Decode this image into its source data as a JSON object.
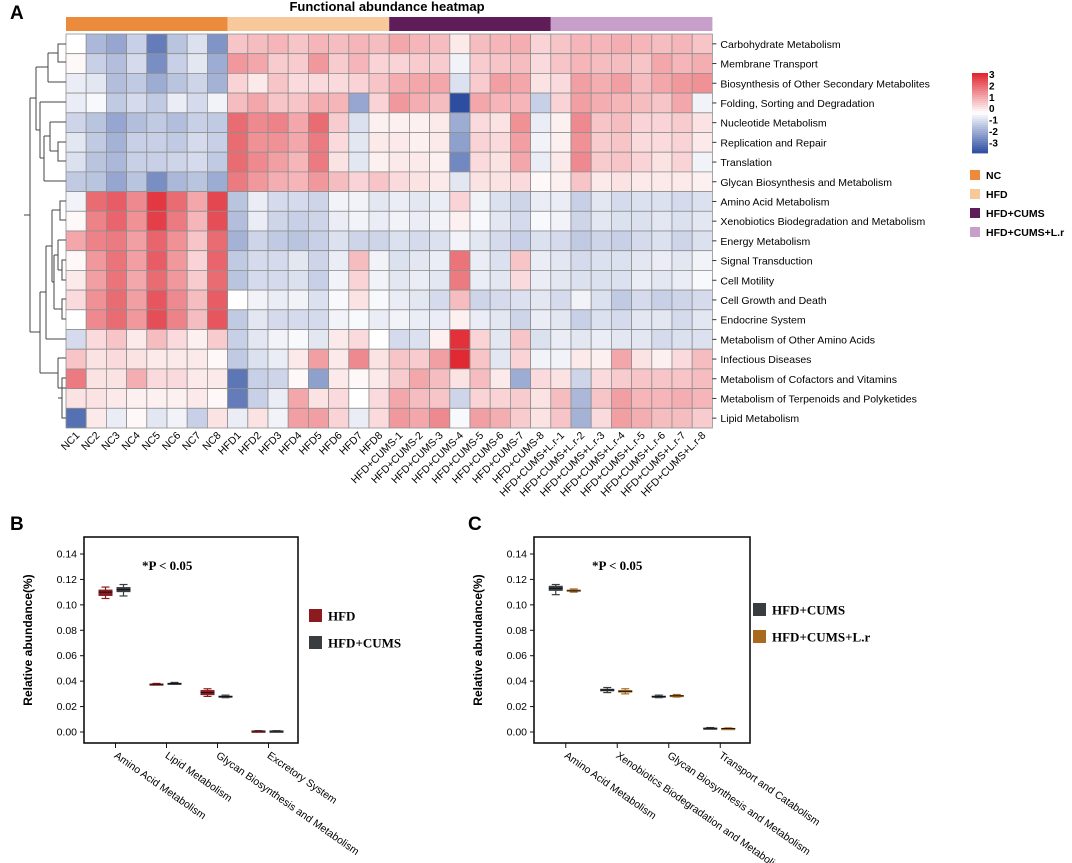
{
  "panel_labels": {
    "a": "A",
    "b": "B",
    "c": "C"
  },
  "colors": {
    "low": "#2c4da0",
    "mid": "#ffffff",
    "high": "#e0222d",
    "grid": "#8f8f8f",
    "NC": "#ec8b3c",
    "HFD": "#f7c99a",
    "HFD+CUMS": "#5e1d59",
    "HFD+CUMS+L.r": "#c79fca",
    "hfd_box": "#8b1b1f",
    "cums_box": "#3a3d40",
    "lr_box": "#a9691f"
  },
  "chart_data": [
    {
      "type": "heatmap",
      "title": "Functional abundance heatmap",
      "columns": [
        "NC1",
        "NC2",
        "NC3",
        "NC4",
        "NC5",
        "NC6",
        "NC7",
        "NC8",
        "HFD1",
        "HFD2",
        "HFD3",
        "HFD4",
        "HFD5",
        "HFD6",
        "HFD7",
        "HFD8",
        "HFD+CUMS-1",
        "HFD+CUMS-2",
        "HFD+CUMS-3",
        "HFD+CUMS-4",
        "HFD+CUMS-5",
        "HFD+CUMS-6",
        "HFD+CUMS-7",
        "HFD+CUMS-8",
        "HFD+CUMS+L.r-1",
        "HFD+CUMS+L.r-2",
        "HFD+CUMS+L.r-3",
        "HFD+CUMS+L.r-4",
        "HFD+CUMS+L.r-5",
        "HFD+CUMS+L.r-6",
        "HFD+CUMS+L.r-7",
        "HFD+CUMS+L.r-8"
      ],
      "rows": [
        "Carbohydrate Metabolism",
        "Membrane Transport",
        "Biosynthesis of Other Secondary Metabolites",
        "Folding, Sorting and Degradation",
        "Nucleotide Metabolism",
        "Replication and Repair",
        "Translation",
        "Glycan Biosynthesis and Metabolism",
        "Amino Acid Metabolism",
        "Xenobiotics Biodegradation and Metabolism",
        "Energy Metabolism",
        "Signal Transduction",
        "Cell Motility",
        "Cell Growth and Death",
        "Endocrine System",
        "Metabolism of Other Amino Acids",
        "Infectious Diseases",
        "Metabolism of Cofactors and Vitamins",
        "Metabolism of Terpenoids and Polyketides",
        "Lipid Metabolism"
      ],
      "groups": [
        {
          "name": "NC",
          "count": 8
        },
        {
          "name": "HFD",
          "count": 8
        },
        {
          "name": "HFD+CUMS",
          "count": 8
        },
        {
          "name": "HFD+CUMS+L.r",
          "count": 8
        }
      ],
      "scale": {
        "min": -3,
        "max": 3,
        "ticks": [
          "3",
          "2",
          "1",
          "0",
          "-1",
          "-2",
          "-3"
        ]
      },
      "values": [
        [
          0,
          -1.2,
          -1.5,
          -0.8,
          -2.2,
          -1.0,
          -0.5,
          -1.8,
          0.8,
          0.9,
          1.0,
          0.8,
          1.0,
          0.9,
          1.0,
          0.9,
          1.2,
          1.0,
          0.9,
          0.3,
          0.9,
          1.0,
          1.1,
          0.6,
          0.8,
          1.0,
          1.0,
          1.1,
          1.0,
          0.9,
          1.0,
          0.8
        ],
        [
          0.1,
          -0.8,
          -1.1,
          -0.6,
          -1.9,
          -0.8,
          -0.4,
          -1.4,
          1.4,
          1.2,
          0.7,
          0.7,
          1.4,
          0.7,
          1.0,
          0.6,
          0.6,
          0.7,
          0.7,
          -0.2,
          0.7,
          0.8,
          0.9,
          0.5,
          0.8,
          1.0,
          0.9,
          0.9,
          0.8,
          1.2,
          1.0,
          1.1
        ],
        [
          -0.3,
          -0.4,
          -1.1,
          -0.9,
          -1.4,
          -1.0,
          -0.7,
          -1.3,
          0.6,
          0.3,
          0.8,
          0.5,
          0.5,
          0.5,
          0.6,
          0.8,
          1.1,
          1.2,
          1.2,
          -0.5,
          0.7,
          1.3,
          1.2,
          0.4,
          0.5,
          1.3,
          1.1,
          1.3,
          0.9,
          1.2,
          1.4,
          1.5
        ],
        [
          -0.3,
          -0.1,
          -0.9,
          -0.6,
          -0.9,
          -0.3,
          -0.6,
          -0.2,
          0.9,
          1.2,
          0.8,
          0.8,
          1.1,
          1.0,
          -1.5,
          0.6,
          1.4,
          1.1,
          0.9,
          -3.0,
          1.2,
          1.0,
          1.0,
          -0.8,
          0.6,
          1.3,
          1.1,
          1.0,
          0.9,
          0.8,
          1.2,
          -0.2
        ],
        [
          -0.7,
          -1.0,
          -1.5,
          -1.1,
          -0.9,
          -1.1,
          -0.8,
          -0.9,
          2.0,
          1.6,
          1.7,
          1.2,
          2.0,
          0.7,
          -0.5,
          0.2,
          0.2,
          0.2,
          0.3,
          -1.4,
          0.5,
          0.4,
          1.5,
          -0.3,
          0.2,
          1.6,
          0.8,
          0.9,
          0.6,
          0.6,
          0.7,
          0.4
        ],
        [
          -0.4,
          -0.9,
          -1.3,
          -0.8,
          -0.8,
          -0.9,
          -0.6,
          -0.8,
          2.0,
          1.5,
          1.5,
          1.2,
          1.8,
          0.5,
          -0.4,
          0.3,
          0.3,
          0.2,
          0.3,
          -1.6,
          0.6,
          0.5,
          1.3,
          -0.2,
          0.2,
          1.5,
          0.7,
          0.8,
          0.5,
          0.5,
          0.6,
          0.3
        ],
        [
          -0.5,
          -1.0,
          -1.2,
          -0.8,
          -0.8,
          -0.7,
          -0.6,
          -0.9,
          2.0,
          1.6,
          1.3,
          1.0,
          1.8,
          0.4,
          -0.4,
          0.2,
          0.3,
          0.3,
          0.2,
          -2.0,
          0.5,
          0.4,
          1.2,
          -0.3,
          0.3,
          1.6,
          0.7,
          0.8,
          0.6,
          0.4,
          0.6,
          -0.2
        ],
        [
          -0.9,
          -1.0,
          -1.5,
          -1.0,
          -1.9,
          -1.2,
          -1.0,
          -1.4,
          1.8,
          1.4,
          1.1,
          1.0,
          1.4,
          0.9,
          0.6,
          0.8,
          0.5,
          0.4,
          0.3,
          -0.4,
          0.4,
          0.4,
          0.5,
          0.1,
          0.2,
          0.8,
          0.3,
          0.4,
          0.3,
          0.3,
          0.3,
          0.2
        ],
        [
          -0.2,
          2.0,
          2.2,
          1.6,
          2.7,
          2.0,
          1.2,
          2.5,
          -1.0,
          -0.3,
          -0.6,
          -0.6,
          -0.7,
          -0.2,
          -0.2,
          -0.4,
          -0.3,
          -0.4,
          -0.3,
          0.6,
          -0.2,
          -0.5,
          -0.7,
          -0.3,
          -0.3,
          -0.8,
          -0.4,
          -0.6,
          -0.5,
          -0.5,
          -0.6,
          -0.5
        ],
        [
          0.1,
          1.7,
          2.1,
          1.5,
          2.6,
          1.8,
          1.0,
          2.4,
          -1.1,
          -0.3,
          -0.7,
          -0.8,
          -0.7,
          -0.3,
          -0.2,
          -0.3,
          -0.2,
          -0.3,
          -0.2,
          0.2,
          -0.1,
          -0.4,
          -0.6,
          -0.1,
          -0.2,
          -0.7,
          -0.4,
          -0.5,
          -0.5,
          -0.4,
          -0.5,
          -0.4
        ],
        [
          1.2,
          1.7,
          1.8,
          1.3,
          2.1,
          1.5,
          0.8,
          2.0,
          -1.3,
          -0.7,
          -0.9,
          -1.0,
          -0.8,
          -0.5,
          -0.7,
          -0.7,
          -0.5,
          -0.6,
          -0.5,
          -0.2,
          -0.4,
          -0.6,
          -0.8,
          -0.5,
          -0.6,
          -0.9,
          -0.7,
          -0.8,
          -0.6,
          -0.5,
          -0.7,
          -0.5
        ],
        [
          0.1,
          1.4,
          1.9,
          1.3,
          2.2,
          1.4,
          0.6,
          2.1,
          -0.9,
          -0.6,
          -0.6,
          -0.4,
          -0.7,
          -0.3,
          0.9,
          -0.2,
          -0.5,
          -0.4,
          -0.3,
          1.9,
          -0.3,
          -0.5,
          0.8,
          -0.3,
          -0.4,
          -0.6,
          -0.5,
          -0.5,
          -0.4,
          -0.3,
          -0.4,
          -0.2
        ],
        [
          0.3,
          1.3,
          1.9,
          1.2,
          2.0,
          1.4,
          0.7,
          2.0,
          -1.0,
          -0.6,
          -0.6,
          -0.5,
          -0.8,
          -0.2,
          0.6,
          -0.2,
          -0.4,
          -0.3,
          -0.4,
          1.8,
          -0.3,
          -0.4,
          0.5,
          -0.3,
          -0.4,
          -0.5,
          -0.5,
          -0.5,
          -0.3,
          -0.4,
          -0.3,
          -0.1
        ],
        [
          0.5,
          1.5,
          2.0,
          1.3,
          2.3,
          1.6,
          0.9,
          2.2,
          0.0,
          -0.2,
          -0.3,
          -0.2,
          -0.5,
          -0.1,
          0.4,
          -0.1,
          -0.3,
          -0.4,
          -0.6,
          0.9,
          -0.7,
          -0.6,
          -0.5,
          -0.4,
          -0.6,
          -0.2,
          -0.5,
          -0.9,
          -0.6,
          -0.8,
          -0.7,
          -0.6
        ],
        [
          0.0,
          1.6,
          2.0,
          1.4,
          2.4,
          1.7,
          0.9,
          2.3,
          -0.9,
          -0.4,
          -0.6,
          -0.6,
          -0.6,
          -0.2,
          -0.1,
          -0.3,
          -0.2,
          -0.3,
          -0.3,
          0.2,
          -0.3,
          -0.4,
          -0.7,
          -0.3,
          -0.4,
          -0.8,
          -0.5,
          -0.6,
          -0.4,
          -0.4,
          -0.6,
          -0.4
        ],
        [
          -0.6,
          0.5,
          0.8,
          0.3,
          0.9,
          0.5,
          0.2,
          0.7,
          -0.8,
          -0.4,
          -0.2,
          -0.1,
          -0.4,
          0.3,
          0.5,
          0.0,
          -0.6,
          -0.5,
          0.2,
          2.8,
          0.6,
          -0.4,
          0.8,
          -0.5,
          -0.3,
          -0.4,
          -0.3,
          -0.4,
          -0.4,
          -0.6,
          -0.5,
          -0.5
        ],
        [
          0.8,
          0.4,
          0.5,
          0.4,
          0.3,
          0.3,
          0.3,
          0.1,
          -0.9,
          -0.5,
          -0.3,
          0.3,
          1.3,
          0.3,
          1.6,
          0.4,
          0.8,
          0.7,
          1.3,
          2.9,
          0.8,
          -0.4,
          0.6,
          -0.2,
          -0.2,
          0.3,
          0.2,
          1.2,
          0.4,
          0.2,
          0.5,
          0.9
        ],
        [
          1.8,
          0.4,
          0.4,
          1.1,
          0.5,
          0.5,
          0.3,
          0.3,
          -2.3,
          -0.8,
          -0.7,
          0.1,
          -1.6,
          0.3,
          0.1,
          0.3,
          0.7,
          1.2,
          0.9,
          0.4,
          0.9,
          0.3,
          -1.4,
          0.5,
          0.4,
          -0.7,
          0.5,
          0.7,
          0.8,
          0.8,
          0.8,
          0.9
        ],
        [
          0.4,
          0.4,
          0.3,
          0.2,
          0.2,
          0.2,
          0.3,
          0.1,
          -2.2,
          -0.8,
          -0.3,
          1.2,
          0.4,
          0.5,
          0.0,
          0.5,
          1.2,
          0.9,
          0.8,
          -0.7,
          0.6,
          0.6,
          0.7,
          0.4,
          0.9,
          -1.2,
          0.8,
          1.3,
          1.0,
          1.0,
          1.1,
          1.0
        ],
        [
          -2.4,
          0.3,
          -0.3,
          0.1,
          -0.4,
          -0.2,
          -0.8,
          0.4,
          -0.3,
          0.4,
          -0.2,
          1.3,
          1.3,
          0.6,
          -0.3,
          0.5,
          1.4,
          1.2,
          1.6,
          -0.1,
          1.3,
          1.1,
          0.7,
          0.4,
          0.8,
          -1.3,
          0.5,
          1.3,
          1.1,
          0.9,
          0.9,
          0.7
        ]
      ]
    },
    {
      "type": "box",
      "ylabel": "Relative abundance(%)",
      "annotation": "*P < 0.05",
      "yticks": [
        "0.14",
        "0.12",
        "0.10",
        "0.08",
        "0.06",
        "0.04",
        "0.02",
        "0.00"
      ],
      "ylim": [
        0,
        0.14
      ],
      "categories": [
        "Amino Acid Metabolism",
        "Lipid Metabolism",
        "Glycan Biosynthesis and Metabolism",
        "Excretory System"
      ],
      "series": [
        {
          "name": "HFD",
          "color_key": "hfd_box",
          "boxes": [
            [
              0.105,
              0.107,
              0.11,
              0.112,
              0.114
            ],
            [
              0.037,
              0.0373,
              0.0376,
              0.038,
              0.0382
            ],
            [
              0.028,
              0.029,
              0.031,
              0.033,
              0.034
            ],
            [
              0.0006,
              0.0007,
              0.0008,
              0.0009,
              0.001
            ]
          ]
        },
        {
          "name": "HFD+CUMS",
          "color_key": "cums_box",
          "boxes": [
            [
              0.107,
              0.11,
              0.112,
              0.114,
              0.116
            ],
            [
              0.0375,
              0.0378,
              0.0382,
              0.0386,
              0.039
            ],
            [
              0.027,
              0.0275,
              0.028,
              0.0285,
              0.029
            ],
            [
              0.0006,
              0.0007,
              0.0008,
              0.0009,
              0.001
            ]
          ]
        }
      ]
    },
    {
      "type": "box",
      "ylabel": "Relative abundance(%)",
      "annotation": "*P < 0.05",
      "yticks": [
        "0.14",
        "0.12",
        "0.10",
        "0.08",
        "0.06",
        "0.04",
        "0.02",
        "0.00"
      ],
      "ylim": [
        0,
        0.14
      ],
      "categories": [
        "Amino Acid Metabolism",
        "Xenobiotics Biodegradation and Metabolism",
        "Glycan Biosynthesis and Metabolism",
        "Transport and Catabolism"
      ],
      "series": [
        {
          "name": "HFD+CUMS",
          "color_key": "cums_box",
          "boxes": [
            [
              0.108,
              0.111,
              0.113,
              0.115,
              0.116
            ],
            [
              0.031,
              0.032,
              0.033,
              0.034,
              0.035
            ],
            [
              0.027,
              0.0275,
              0.028,
              0.0285,
              0.029
            ],
            [
              0.0024,
              0.0027,
              0.003,
              0.0033,
              0.0035
            ]
          ]
        },
        {
          "name": "HFD+CUMS+L.r",
          "color_key": "lr_box",
          "boxes": [
            [
              0.11,
              0.1105,
              0.111,
              0.112,
              0.1125
            ],
            [
              0.03,
              0.031,
              0.032,
              0.033,
              0.034
            ],
            [
              0.0275,
              0.028,
              0.0285,
              0.029,
              0.0295
            ],
            [
              0.0024,
              0.0026,
              0.0028,
              0.003,
              0.0032
            ]
          ]
        }
      ]
    }
  ]
}
